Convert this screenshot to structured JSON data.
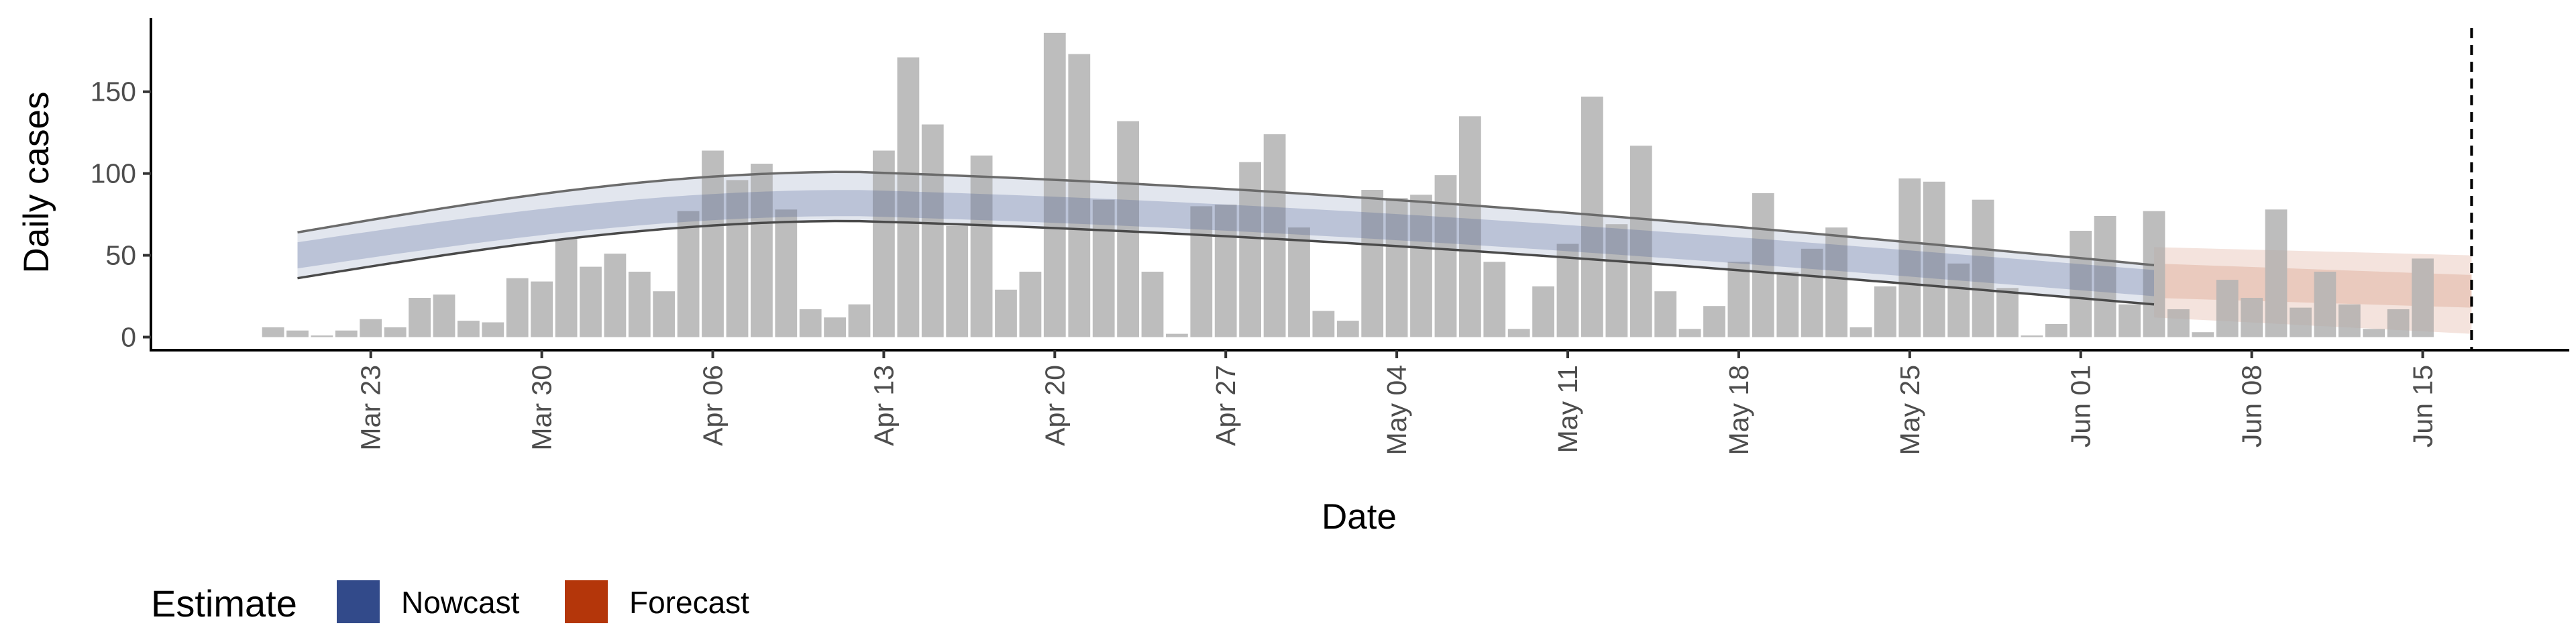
{
  "chart_data": {
    "type": "bar",
    "xlabel": "Date",
    "ylabel": "Daily cases",
    "x_tick_labels": [
      "Mar 23",
      "Mar 30",
      "Apr 06",
      "Apr 13",
      "Apr 20",
      "Apr 27",
      "May 04",
      "May 11",
      "May 18",
      "May 25",
      "Jun 01",
      "Jun 08",
      "Jun 15"
    ],
    "y_ticks": [
      0,
      50,
      100,
      150
    ],
    "ylim": [
      -8,
      195
    ],
    "xlim": [
      "2020-03-14",
      "2020-06-21"
    ],
    "grid": false,
    "legend": {
      "title": "Estimate",
      "position": "bottom-left",
      "items": [
        {
          "label": "Nowcast",
          "color": "#324a8a"
        },
        {
          "label": "Forecast",
          "color": "#b4360a"
        }
      ]
    },
    "bars": {
      "color": "#bdbdbd",
      "start_date": "2020-03-19",
      "values": [
        6,
        4,
        1,
        4,
        11,
        6,
        24,
        26,
        10,
        9,
        36,
        34,
        60,
        43,
        51,
        40,
        28,
        77,
        114,
        96,
        106,
        78,
        17,
        12,
        20,
        114,
        171,
        130,
        68,
        111,
        29,
        40,
        186,
        173,
        84,
        132,
        40,
        2,
        80,
        81,
        107,
        124,
        67,
        16,
        10,
        90,
        85,
        87,
        99,
        135,
        46,
        5,
        31,
        57,
        147,
        69,
        117,
        28,
        5,
        19,
        46,
        88,
        40,
        54,
        67,
        6,
        31,
        97,
        95,
        45,
        84,
        30,
        1,
        8,
        65,
        74,
        20,
        77,
        17,
        3,
        35,
        24,
        78,
        18,
        40,
        20,
        5,
        17,
        48
      ]
    },
    "vline": {
      "date": "2020-06-17",
      "style": "dashed"
    },
    "nowcast": {
      "start_date": "2020-03-20",
      "end_date": "2020-06-04",
      "median_start": 50,
      "median_peak": 82,
      "median_end": 33,
      "band50_halfwidth": 8,
      "band90_upper": [
        64,
        101,
        44
      ],
      "band90_lower": [
        36,
        71,
        20
      ]
    },
    "forecast": {
      "start_date": "2020-06-04",
      "end_date": "2020-06-17",
      "median": [
        33,
        28
      ],
      "band50": [
        [
          24,
          45
        ],
        [
          18,
          38
        ]
      ],
      "band90": [
        [
          12,
          55
        ],
        [
          2,
          50
        ]
      ]
    }
  }
}
